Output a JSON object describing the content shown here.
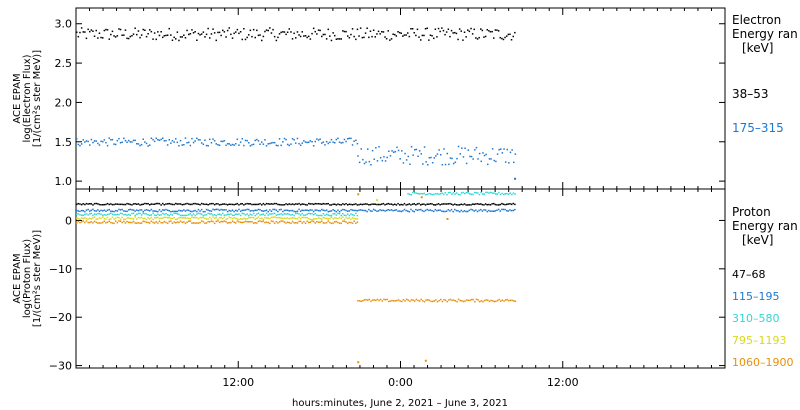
{
  "chart_data": [
    {
      "type": "scatter",
      "panel": "electron",
      "ylabel_lines": [
        "ACE EPAM",
        "log(Electron Flux)",
        "[1/(cm²s ster MeV)]"
      ],
      "ylim": [
        0.9,
        3.2
      ],
      "yticks": [
        1.0,
        1.5,
        2.0,
        2.5,
        3.0
      ],
      "ytick_labels": [
        "1.0",
        "1.5",
        "2.0",
        "2.5",
        "3.0"
      ],
      "legend_title_lines": [
        "Electron",
        "Energy ran",
        "[keV]"
      ],
      "series": [
        {
          "name": "38–53",
          "color": "#000000",
          "segments": [
            {
              "x_from": 0,
              "x_to": 32.5,
              "y_mean": 2.87,
              "spread": 0.08
            }
          ]
        },
        {
          "name": "175–315",
          "color": "#1f78d0",
          "segments": [
            {
              "x_from": 0,
              "x_to": 20.8,
              "y_mean": 1.5,
              "spread": 0.05
            },
            {
              "x_from": 20.8,
              "x_to": 32.5,
              "y_mean": 1.33,
              "spread": 0.12
            }
          ]
        }
      ],
      "outliers": [
        {
          "series": "175–315",
          "x": 32.4,
          "y": 1.03
        }
      ]
    },
    {
      "type": "scatter",
      "panel": "proton",
      "ylabel_lines": [
        "ACE EPAM",
        "log(Proton Flux)",
        "[1/(cm²s ster MeV)]"
      ],
      "ylim": [
        -30.5,
        6.5
      ],
      "yticks": [
        -30,
        -20,
        -10,
        0
      ],
      "ytick_labels": [
        "−30",
        "−20",
        "−10",
        "0"
      ],
      "legend_title_lines": [
        "Proton",
        "Energy ran",
        "[keV]"
      ],
      "series": [
        {
          "name": "47–68",
          "color": "#000000",
          "segments": [
            {
              "x_from": 0,
              "x_to": 32.5,
              "y_mean": 3.4,
              "spread": 0.15
            }
          ]
        },
        {
          "name": "115–195",
          "color": "#1f78d0",
          "segments": [
            {
              "x_from": 0,
              "x_to": 32.5,
              "y_mean": 2.1,
              "spread": 0.25
            }
          ]
        },
        {
          "name": "310–580",
          "color": "#33d6d6",
          "segments": [
            {
              "x_from": 0,
              "x_to": 20.8,
              "y_mean": 1.3,
              "spread": 0.25
            },
            {
              "x_from": 24.5,
              "x_to": 32.5,
              "y_mean": 5.6,
              "spread": 0.25
            }
          ]
        },
        {
          "name": "795–1193",
          "color": "#d8d820",
          "segments": [
            {
              "x_from": 0,
              "x_to": 20.8,
              "y_mean": 0.5,
              "spread": 0.25
            }
          ]
        },
        {
          "name": "1060–1900",
          "color": "#e8900a",
          "segments": [
            {
              "x_from": 0,
              "x_to": 20.8,
              "y_mean": -0.3,
              "spread": 0.25
            },
            {
              "x_from": 20.8,
              "x_to": 32.5,
              "y_mean": -16.5,
              "spread": 0.25
            }
          ]
        }
      ],
      "outliers": [
        {
          "series": "1060–1900",
          "x": 20.8,
          "y": -29.3
        },
        {
          "series": "1060–1900",
          "x": 25.8,
          "y": -29.0
        },
        {
          "series": "1060–1900",
          "x": 20.8,
          "y": 5.4
        },
        {
          "series": "1060–1900",
          "x": 25.5,
          "y": 4.8
        },
        {
          "series": "795–1193",
          "x": 22.2,
          "y": 4.2
        },
        {
          "series": "1060–1900",
          "x": 27.4,
          "y": 0.3
        }
      ]
    }
  ],
  "x_axis": {
    "range_hours": [
      0,
      48
    ],
    "ticks": [
      {
        "hour": 12,
        "label": "12:00"
      },
      {
        "hour": 24,
        "label": "0:00"
      },
      {
        "hour": 36,
        "label": "12:00"
      }
    ],
    "minor_step_hours": 1
  },
  "xlabel": "hours:minutes,  June  2, 2021 – June  3, 2021"
}
